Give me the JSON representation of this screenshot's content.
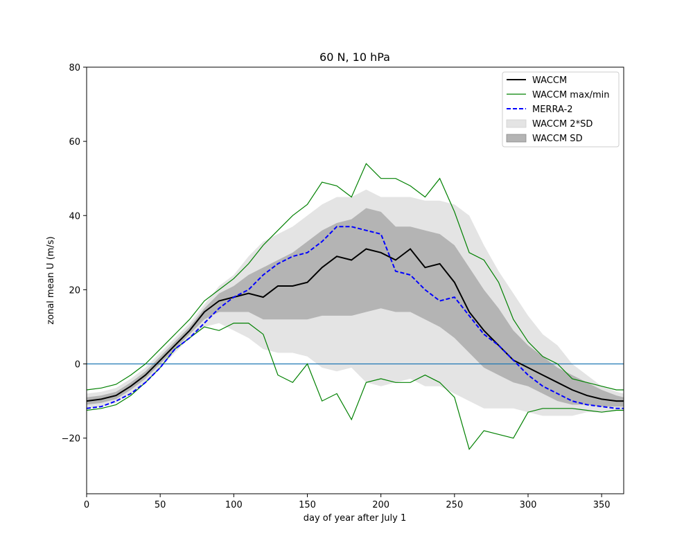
{
  "chart_data": {
    "type": "line",
    "title": "60 N, 10 hPa",
    "xlabel": "day of year after July 1",
    "ylabel": "zonal mean U (m/s)",
    "xlim": [
      0,
      365
    ],
    "ylim": [
      -35,
      80
    ],
    "xticks": [
      0,
      50,
      100,
      150,
      200,
      250,
      300,
      350
    ],
    "yticks": [
      -20,
      0,
      20,
      40,
      60,
      80
    ],
    "ytick_labels": [
      "−20",
      "0",
      "20",
      "40",
      "60",
      "80"
    ],
    "grid": false,
    "legend_position": "top-right",
    "reference_line": {
      "y": 0,
      "color": "#1f77b4"
    },
    "x": [
      0,
      10,
      20,
      30,
      40,
      50,
      60,
      70,
      80,
      90,
      100,
      110,
      120,
      130,
      140,
      150,
      160,
      170,
      180,
      190,
      200,
      210,
      220,
      230,
      240,
      250,
      260,
      270,
      280,
      290,
      300,
      310,
      320,
      330,
      340,
      350,
      360,
      365
    ],
    "series": [
      {
        "name": "WACCM",
        "style": "solid",
        "color": "#000000",
        "values": [
          -10,
          -9.5,
          -8.5,
          -6,
          -3,
          1,
          5,
          9,
          14,
          17,
          18,
          19,
          18,
          21,
          21,
          22,
          26,
          29,
          28,
          31,
          30,
          28,
          31,
          26,
          27,
          22,
          14,
          9,
          5,
          1,
          -1,
          -3,
          -5,
          -7,
          -8.5,
          -9.5,
          -10,
          -10
        ]
      },
      {
        "name": "MERRA-2",
        "style": "dashed",
        "color": "#0000ff",
        "values": [
          -12,
          -11.5,
          -10,
          -8,
          -5,
          -1,
          4,
          7,
          11,
          15,
          18,
          20,
          24,
          27,
          29,
          30,
          33,
          37,
          37,
          36,
          35,
          25,
          24,
          20,
          17,
          18,
          13,
          8,
          5,
          1,
          -3,
          -6,
          -8,
          -10,
          -11,
          -11.5,
          -12,
          -12
        ]
      },
      {
        "name": "WACCM max/min",
        "style": "solid",
        "color": "#008000",
        "values_max": [
          -7,
          -6.5,
          -5.5,
          -3,
          0,
          4,
          8,
          12,
          17,
          20,
          23,
          27,
          32,
          36,
          40,
          43,
          49,
          48,
          45,
          54,
          50,
          50,
          48,
          45,
          50,
          41,
          30,
          28,
          22,
          12,
          6,
          2,
          0,
          -4,
          -5,
          -6,
          -7,
          -7
        ],
        "values_min": [
          -12.5,
          -12,
          -11,
          -8.5,
          -5,
          -1,
          4,
          7,
          10,
          9,
          11,
          11,
          8,
          -3,
          -5,
          0,
          -10,
          -8,
          -15,
          -5,
          -4,
          -5,
          -5,
          -3,
          -5,
          -9,
          -23,
          -18,
          -19,
          -20,
          -13,
          -12,
          -12,
          -12,
          -12.5,
          -13,
          -12.5,
          -12.5
        ]
      },
      {
        "name": "WACCM 2*SD",
        "style": "fill",
        "color": "#e4e4e4",
        "upper": [
          -8,
          -7.5,
          -6.5,
          -4,
          -1,
          3,
          7,
          11,
          16,
          21,
          24,
          29,
          33,
          35,
          37,
          40,
          43,
          45,
          45,
          47,
          45,
          45,
          45,
          44,
          44,
          43,
          40,
          32,
          25,
          19,
          13,
          8,
          5,
          0,
          -3,
          -6,
          -7.5,
          -8
        ],
        "lower": [
          -12,
          -11.5,
          -10.5,
          -8,
          -5,
          -1,
          3,
          7,
          10,
          11,
          9,
          7,
          4,
          3,
          3,
          2,
          -1,
          -2,
          -1,
          -5,
          -6,
          -5,
          -4,
          -6,
          -6,
          -8,
          -10,
          -12,
          -12,
          -12,
          -13,
          -14,
          -14,
          -14,
          -13,
          -13,
          -12.5,
          -12.5
        ]
      },
      {
        "name": "WACCM SD",
        "style": "fill",
        "color": "#b4b4b4",
        "upper": [
          -9,
          -8.5,
          -7.5,
          -5,
          -2,
          2,
          6,
          10,
          15,
          19,
          21,
          24,
          26,
          28,
          30,
          33,
          36,
          38,
          39,
          42,
          41,
          37,
          37,
          36,
          35,
          32,
          26,
          20,
          15,
          9,
          5,
          2,
          -1,
          -3,
          -5,
          -7,
          -8.5,
          -9
        ],
        "lower": [
          -11,
          -10.5,
          -9.5,
          -7,
          -4,
          0,
          4,
          8,
          12,
          14,
          14,
          14,
          12,
          12,
          12,
          12,
          13,
          13,
          13,
          14,
          15,
          14,
          14,
          12,
          10,
          7,
          3,
          -1,
          -3,
          -5,
          -6,
          -8,
          -10,
          -11,
          -11,
          -11.5,
          -11.5,
          -11.5
        ]
      }
    ]
  }
}
